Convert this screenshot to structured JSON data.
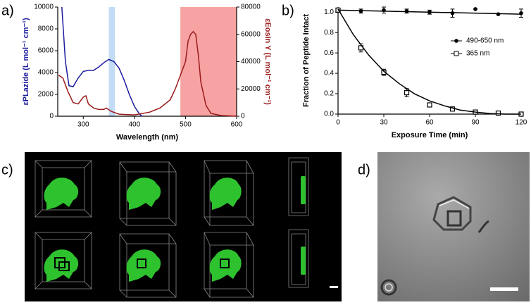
{
  "panel_labels": [
    "a)",
    "b)",
    "c)",
    "d)"
  ],
  "chart_data": [
    {
      "type": "line",
      "xlabel": "Wavelength (nm)",
      "ylabel": "εPLazide (L mol⁻¹ cm⁻¹)",
      "y2label": "εEosin Y (L mol⁻¹ cm⁻¹)",
      "xlim": [
        250,
        600
      ],
      "xticks": [
        300,
        400,
        500,
        600
      ],
      "ylim": [
        0,
        10000
      ],
      "yticks": [
        0,
        2000,
        4000,
        6000,
        8000,
        10000
      ],
      "y2lim": [
        0,
        80000
      ],
      "y2ticks": [
        0,
        20000,
        40000,
        60000,
        80000
      ],
      "shaded_regions": [
        {
          "xlim": [
            350,
            362
          ],
          "color": "#c4dbf6"
        },
        {
          "xlim": [
            490,
            600
          ],
          "color": "#f7a3a3"
        }
      ],
      "series": [
        {
          "color": "#1c1c9e",
          "x": [
            258,
            265,
            272,
            280,
            290,
            300,
            310,
            320,
            330,
            340,
            350,
            360,
            370,
            380,
            390,
            400,
            410,
            415
          ],
          "values": [
            10000,
            5000,
            2800,
            2700,
            3500,
            4100,
            4200,
            4200,
            4500,
            4900,
            5200,
            5000,
            4400,
            3300,
            2000,
            900,
            200,
            0
          ]
        },
        {
          "color": "#9b1b1b",
          "axis": "y2",
          "x": [
            252,
            260,
            270,
            280,
            290,
            300,
            305,
            310,
            320,
            330,
            340,
            345,
            355,
            370,
            400,
            430,
            450,
            470,
            480,
            490,
            500,
            505,
            510,
            515,
            520,
            525,
            530,
            540,
            550,
            570,
            600
          ],
          "values": [
            30000,
            28000,
            18000,
            10000,
            9000,
            14000,
            15000,
            9000,
            6000,
            5000,
            5000,
            6000,
            3500,
            1500,
            1000,
            3000,
            6000,
            12000,
            20000,
            30000,
            40000,
            55000,
            60000,
            62000,
            60000,
            45000,
            25000,
            8000,
            2000,
            500,
            0
          ]
        }
      ]
    },
    {
      "type": "scatter",
      "xlabel": "Exposure Time (min)",
      "ylabel": "Fraction of Peptide Intact",
      "xlim": [
        0,
        120
      ],
      "xticks": [
        0,
        30,
        60,
        90,
        120
      ],
      "ylim": [
        0,
        1.05
      ],
      "yticks": [
        {
          "value": 0,
          "label": "0.0"
        },
        0.2,
        0.4,
        0.6,
        0.8,
        {
          "value": 1,
          "label": "1.0"
        }
      ],
      "legend": "right",
      "series": [
        {
          "name": "490-650 nm",
          "color": "#000000",
          "marker": "circle",
          "x": [
            0,
            15,
            30,
            45,
            60,
            75,
            90,
            105,
            120
          ],
          "values": [
            1.02,
            1.01,
            1.02,
            1.01,
            1.0,
            0.99,
            1.03,
            0.98,
            0.99
          ],
          "errors": [
            0.02,
            0.02,
            0.03,
            0.02,
            0.02,
            0.04,
            0,
            0,
            0.04
          ]
        },
        {
          "name": "365 nm",
          "color": "#000000",
          "marker": "square",
          "x": [
            0,
            15,
            30,
            45,
            60,
            75,
            90,
            105,
            120
          ],
          "values": [
            1.02,
            0.65,
            0.41,
            0.21,
            0.09,
            0.05,
            0.02,
            0.01,
            0.0
          ],
          "errors": [
            0.02,
            0.04,
            0.03,
            0.04,
            0.02,
            0.02,
            0.01,
            0.01,
            0.01
          ]
        },
        {
          "color": "#000000",
          "marker": "none",
          "x": [
            0,
            120
          ],
          "values": [
            1.02,
            0.98
          ]
        },
        {
          "color": "#000000",
          "marker": "none",
          "x": [
            0,
            10,
            20,
            30,
            40,
            50,
            60,
            70,
            80,
            90,
            100,
            110,
            120
          ],
          "values": [
            1.03,
            0.78,
            0.58,
            0.42,
            0.3,
            0.2,
            0.13,
            0.08,
            0.04,
            0.02,
            0.005,
            0,
            0
          ]
        }
      ]
    }
  ]
}
